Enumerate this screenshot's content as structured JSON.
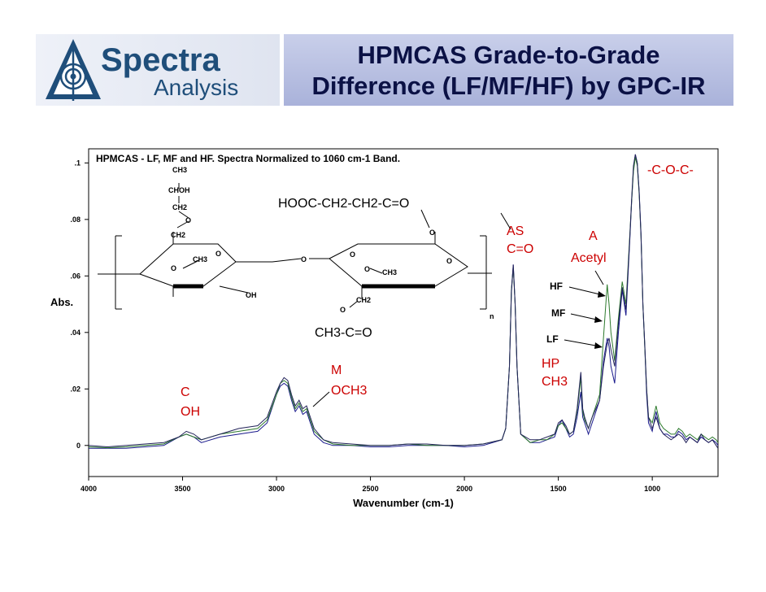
{
  "header": {
    "title_line1": "HPMCAS Grade-to-Grade",
    "title_line2": "Difference (LF/MF/HF) by GPC-IR",
    "logo_word1": "Spectra",
    "logo_word2": "Analysis",
    "logo_icon": "spectra-analysis-logo-icon"
  },
  "chart_data": {
    "type": "line",
    "title": "HPMCAS - LF, MF and HF.  Spectra Normalized to 1060 cm-1 Band.",
    "xlabel": "Wavenumber (cm-1)",
    "ylabel": "Abs.",
    "xlim": [
      4000,
      650
    ],
    "ylim": [
      -0.011,
      0.105
    ],
    "x_ticks": [
      4000,
      3500,
      3000,
      2500,
      2000,
      1500,
      1000
    ],
    "x_tick_labels": [
      "4000",
      "3500",
      "3000",
      "2500",
      "2000",
      "1500",
      "1000"
    ],
    "y_ticks": [
      0,
      0.02,
      0.04,
      0.06,
      0.08,
      0.1
    ],
    "y_tick_labels": [
      "0",
      ".02",
      ".04",
      ".06",
      ".08",
      ".1"
    ],
    "grid": false,
    "series": [
      {
        "name": "HF",
        "color": "#1a1a8c",
        "x": [
          4000,
          3900,
          3800,
          3700,
          3600,
          3520,
          3480,
          3440,
          3400,
          3300,
          3200,
          3100,
          3050,
          3000,
          2980,
          2960,
          2940,
          2920,
          2900,
          2880,
          2860,
          2840,
          2820,
          2800,
          2750,
          2700,
          2600,
          2500,
          2400,
          2300,
          2200,
          2100,
          2000,
          1900,
          1800,
          1780,
          1760,
          1750,
          1740,
          1730,
          1720,
          1700,
          1650,
          1600,
          1560,
          1520,
          1500,
          1480,
          1460,
          1440,
          1420,
          1400,
          1380,
          1370,
          1360,
          1340,
          1320,
          1300,
          1280,
          1260,
          1240,
          1230,
          1220,
          1200,
          1180,
          1160,
          1140,
          1120,
          1110,
          1100,
          1090,
          1080,
          1070,
          1060,
          1050,
          1040,
          1030,
          1020,
          1000,
          980,
          960,
          940,
          920,
          900,
          880,
          860,
          840,
          820,
          800,
          780,
          760,
          740,
          720,
          700,
          680,
          660,
          650
        ],
        "y": [
          -0.001,
          -0.001,
          -0.001,
          -0.0005,
          0.0,
          0.003,
          0.004,
          0.003,
          0.001,
          0.003,
          0.004,
          0.005,
          0.008,
          0.018,
          0.021,
          0.022,
          0.021,
          0.016,
          0.012,
          0.014,
          0.011,
          0.012,
          0.008,
          0.004,
          0.001,
          0.0,
          0.0,
          -0.0005,
          -0.0005,
          0.0,
          0.0,
          0.0,
          -0.0005,
          0.0,
          0.002,
          0.006,
          0.028,
          0.055,
          0.064,
          0.05,
          0.028,
          0.004,
          0.001,
          0.001,
          0.002,
          0.003,
          0.007,
          0.009,
          0.006,
          0.003,
          0.004,
          0.01,
          0.019,
          0.01,
          0.008,
          0.004,
          0.008,
          0.012,
          0.016,
          0.03,
          0.038,
          0.035,
          0.028,
          0.022,
          0.04,
          0.055,
          0.046,
          0.072,
          0.086,
          0.098,
          0.103,
          0.1,
          0.09,
          0.075,
          0.05,
          0.035,
          0.018,
          0.008,
          0.005,
          0.012,
          0.006,
          0.004,
          0.004,
          0.003,
          0.003,
          0.005,
          0.004,
          0.002,
          0.003,
          0.002,
          0.001,
          0.003,
          0.002,
          0.001,
          0.002,
          0.001,
          0.0
        ]
      },
      {
        "name": "MF",
        "color": "#2d7a2d",
        "x": [
          4000,
          3900,
          3800,
          3700,
          3600,
          3520,
          3480,
          3440,
          3400,
          3300,
          3200,
          3100,
          3050,
          3000,
          2980,
          2960,
          2940,
          2920,
          2900,
          2880,
          2860,
          2840,
          2820,
          2800,
          2750,
          2700,
          2600,
          2500,
          2400,
          2300,
          2200,
          2100,
          2000,
          1900,
          1800,
          1780,
          1760,
          1750,
          1740,
          1730,
          1720,
          1700,
          1650,
          1600,
          1560,
          1520,
          1500,
          1480,
          1460,
          1440,
          1420,
          1400,
          1380,
          1370,
          1360,
          1340,
          1320,
          1300,
          1280,
          1260,
          1240,
          1230,
          1220,
          1200,
          1180,
          1160,
          1140,
          1120,
          1110,
          1100,
          1090,
          1080,
          1070,
          1060,
          1050,
          1040,
          1030,
          1020,
          1000,
          980,
          960,
          940,
          920,
          900,
          880,
          860,
          840,
          820,
          800,
          780,
          760,
          740,
          720,
          700,
          680,
          660,
          650
        ],
        "y": [
          -0.0005,
          -0.0008,
          -0.0005,
          0.0,
          0.0005,
          0.003,
          0.004,
          0.003,
          0.002,
          0.004,
          0.005,
          0.006,
          0.009,
          0.018,
          0.022,
          0.023,
          0.022,
          0.017,
          0.013,
          0.015,
          0.012,
          0.013,
          0.009,
          0.005,
          0.002,
          0.0005,
          0.0,
          0.0,
          0.0,
          0.0005,
          0.0,
          0.0,
          0.0,
          0.0005,
          0.002,
          0.006,
          0.028,
          0.055,
          0.063,
          0.05,
          0.028,
          0.004,
          0.001,
          0.002,
          0.002,
          0.004,
          0.007,
          0.008,
          0.006,
          0.004,
          0.005,
          0.012,
          0.024,
          0.012,
          0.009,
          0.006,
          0.01,
          0.014,
          0.018,
          0.038,
          0.057,
          0.05,
          0.04,
          0.03,
          0.045,
          0.058,
          0.05,
          0.074,
          0.086,
          0.097,
          0.102,
          0.099,
          0.089,
          0.074,
          0.05,
          0.035,
          0.02,
          0.01,
          0.008,
          0.014,
          0.008,
          0.006,
          0.005,
          0.004,
          0.004,
          0.006,
          0.005,
          0.003,
          0.004,
          0.003,
          0.002,
          0.004,
          0.003,
          0.002,
          0.003,
          0.002,
          0.001
        ]
      },
      {
        "name": "LF",
        "color": "#23235a",
        "x": [
          4000,
          3900,
          3800,
          3700,
          3600,
          3520,
          3480,
          3440,
          3400,
          3300,
          3200,
          3100,
          3050,
          3000,
          2980,
          2960,
          2940,
          2920,
          2900,
          2880,
          2860,
          2840,
          2820,
          2800,
          2750,
          2700,
          2600,
          2500,
          2400,
          2300,
          2200,
          2100,
          2000,
          1900,
          1800,
          1780,
          1760,
          1750,
          1740,
          1730,
          1720,
          1700,
          1650,
          1600,
          1560,
          1520,
          1500,
          1480,
          1460,
          1440,
          1420,
          1400,
          1380,
          1370,
          1360,
          1340,
          1320,
          1300,
          1280,
          1260,
          1240,
          1230,
          1220,
          1200,
          1180,
          1160,
          1140,
          1120,
          1110,
          1100,
          1090,
          1080,
          1070,
          1060,
          1050,
          1040,
          1030,
          1020,
          1000,
          980,
          960,
          940,
          920,
          900,
          880,
          860,
          840,
          820,
          800,
          780,
          760,
          740,
          720,
          700,
          680,
          660,
          650
        ],
        "y": [
          0.0,
          -0.0005,
          0.0,
          0.0005,
          0.001,
          0.003,
          0.005,
          0.004,
          0.002,
          0.004,
          0.006,
          0.007,
          0.01,
          0.019,
          0.022,
          0.024,
          0.023,
          0.018,
          0.014,
          0.016,
          0.013,
          0.014,
          0.01,
          0.006,
          0.002,
          0.001,
          0.0005,
          0.0,
          0.0,
          0.0005,
          0.0005,
          0.0,
          0.0,
          0.0005,
          0.002,
          0.006,
          0.028,
          0.054,
          0.064,
          0.05,
          0.028,
          0.004,
          0.002,
          0.002,
          0.003,
          0.004,
          0.008,
          0.009,
          0.007,
          0.004,
          0.005,
          0.013,
          0.026,
          0.013,
          0.01,
          0.006,
          0.01,
          0.013,
          0.016,
          0.028,
          0.036,
          0.038,
          0.034,
          0.028,
          0.043,
          0.056,
          0.048,
          0.073,
          0.087,
          0.099,
          0.103,
          0.1,
          0.09,
          0.074,
          0.05,
          0.036,
          0.02,
          0.01,
          0.006,
          0.01,
          0.006,
          0.004,
          0.003,
          0.002,
          0.003,
          0.004,
          0.003,
          0.001,
          0.003,
          0.002,
          0.001,
          0.004,
          0.002,
          0.001,
          0.002,
          0.0,
          -0.001
        ]
      }
    ],
    "annotations": {
      "coc": "-C-O-C-",
      "hooc": "HOOC-CH2-CH2-C=O",
      "as1": "AS",
      "as2": "C=O",
      "a1": "A",
      "a2": "Acetyl",
      "hf": "HF",
      "mf": "MF",
      "lf": "LF",
      "hp1": "HP",
      "hp2": "CH3",
      "ch3co": "CH3-C=O",
      "m1": "M",
      "m2": "OCH3",
      "c1": "C",
      "c2": "OH"
    },
    "annotation_color": "#cc0000",
    "structure": {
      "ch3": "CH3",
      "choh": "CHOH",
      "ch2": "CH2",
      "o": "O",
      "oh": "OH",
      "n": "n"
    }
  }
}
